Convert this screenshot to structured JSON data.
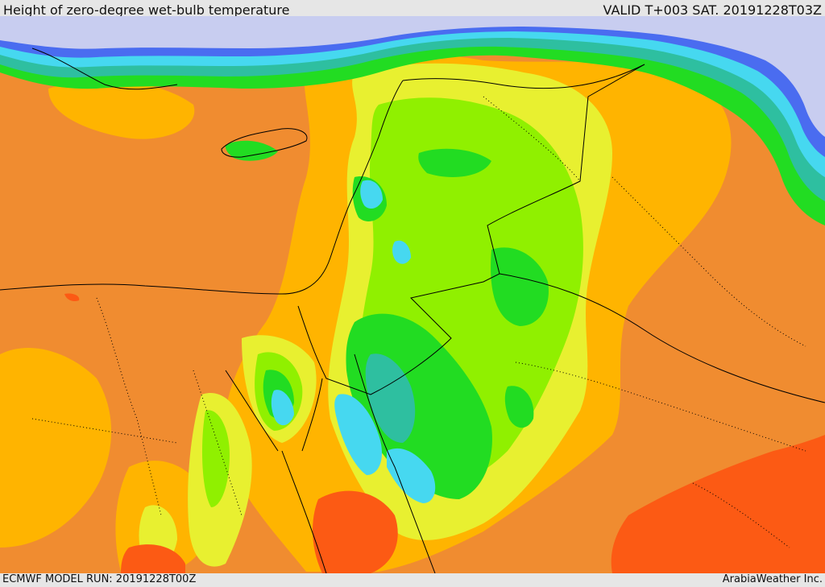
{
  "header": {
    "title": "Height of zero-degree wet-bulb temperature",
    "valid": "VALID T+003 SAT. 20191228T03Z"
  },
  "footer": {
    "model_run": "ECMWF MODEL RUN: 20191228T00Z",
    "credit": "ArabiaWeather Inc."
  },
  "map": {
    "field": "zero-degree wet-bulb height",
    "palette": {
      "sea_cold": "#c8cdf0",
      "blue": "#4a6cf0",
      "cyan": "#46d8f0",
      "teal": "#2ebfa0",
      "green": "#22dc22",
      "lime": "#90f000",
      "yellow": "#e8f030",
      "amber": "#ffb400",
      "orange": "#f08c30",
      "red_orange": "#fc5a14"
    },
    "border_color": "#000000"
  }
}
